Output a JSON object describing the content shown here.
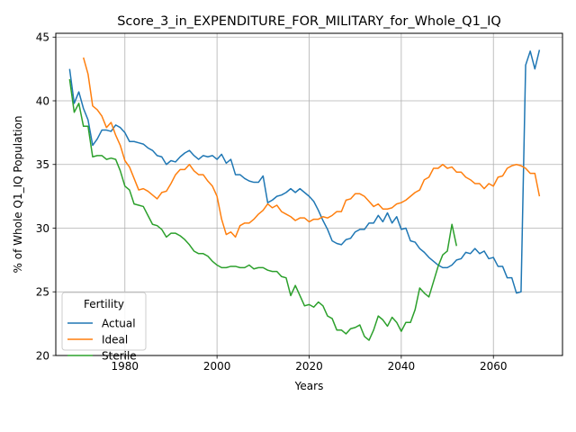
{
  "chart_data": {
    "type": "line",
    "title": "Score_3_in_EXPENDITURE_FOR_MILITARY_for_Whole_Q1_IQ",
    "xlabel": "Years",
    "ylabel": "% of Whole Q1_IQ Population",
    "xlim": [
      1965,
      2075
    ],
    "ylim": [
      20,
      45.3
    ],
    "xticks": [
      1980,
      2000,
      2020,
      2040,
      2060
    ],
    "yticks": [
      20,
      25,
      30,
      35,
      40,
      45
    ],
    "grid": true,
    "legend": {
      "title": "Fertility",
      "placement": "lower-left"
    },
    "series": [
      {
        "name": "Actual",
        "color": "#1f77b4",
        "points": [
          [
            1968,
            42.5
          ],
          [
            1969,
            39.8
          ],
          [
            1970,
            40.7
          ],
          [
            1971,
            39.4
          ],
          [
            1972,
            38.5
          ],
          [
            1973,
            36.5
          ],
          [
            1974,
            37.0
          ],
          [
            1975,
            37.7
          ],
          [
            1976,
            37.7
          ],
          [
            1977,
            37.6
          ],
          [
            1978,
            38.1
          ],
          [
            1979,
            37.9
          ],
          [
            1980,
            37.5
          ],
          [
            1981,
            36.8
          ],
          [
            1982,
            36.8
          ],
          [
            1983,
            36.7
          ],
          [
            1984,
            36.6
          ],
          [
            1985,
            36.3
          ],
          [
            1986,
            36.1
          ],
          [
            1987,
            35.7
          ],
          [
            1988,
            35.6
          ],
          [
            1989,
            35.0
          ],
          [
            1990,
            35.3
          ],
          [
            1991,
            35.2
          ],
          [
            1992,
            35.6
          ],
          [
            1993,
            35.9
          ],
          [
            1994,
            36.1
          ],
          [
            1995,
            35.7
          ],
          [
            1996,
            35.4
          ],
          [
            1997,
            35.7
          ],
          [
            1998,
            35.6
          ],
          [
            1999,
            35.7
          ],
          [
            2000,
            35.4
          ],
          [
            2001,
            35.8
          ],
          [
            2002,
            35.1
          ],
          [
            2003,
            35.4
          ],
          [
            2004,
            34.2
          ],
          [
            2005,
            34.2
          ],
          [
            2006,
            33.9
          ],
          [
            2007,
            33.7
          ],
          [
            2008,
            33.6
          ],
          [
            2009,
            33.6
          ],
          [
            2010,
            34.1
          ],
          [
            2011,
            32.0
          ],
          [
            2012,
            32.2
          ],
          [
            2013,
            32.5
          ],
          [
            2014,
            32.6
          ],
          [
            2015,
            32.8
          ],
          [
            2016,
            33.1
          ],
          [
            2017,
            32.8
          ],
          [
            2018,
            33.1
          ],
          [
            2019,
            32.8
          ],
          [
            2020,
            32.5
          ],
          [
            2021,
            32.1
          ],
          [
            2022,
            31.4
          ],
          [
            2023,
            30.6
          ],
          [
            2024,
            29.9
          ],
          [
            2025,
            29.0
          ],
          [
            2026,
            28.8
          ],
          [
            2027,
            28.7
          ],
          [
            2028,
            29.1
          ],
          [
            2029,
            29.2
          ],
          [
            2030,
            29.7
          ],
          [
            2031,
            29.9
          ],
          [
            2032,
            29.9
          ],
          [
            2033,
            30.4
          ],
          [
            2034,
            30.4
          ],
          [
            2035,
            31.0
          ],
          [
            2036,
            30.5
          ],
          [
            2037,
            31.2
          ],
          [
            2038,
            30.4
          ],
          [
            2039,
            30.9
          ],
          [
            2040,
            29.9
          ],
          [
            2041,
            30.0
          ],
          [
            2042,
            29.0
          ],
          [
            2043,
            28.9
          ],
          [
            2044,
            28.4
          ],
          [
            2045,
            28.1
          ],
          [
            2046,
            27.7
          ],
          [
            2047,
            27.4
          ],
          [
            2048,
            27.1
          ],
          [
            2049,
            26.9
          ],
          [
            2050,
            26.9
          ],
          [
            2051,
            27.1
          ],
          [
            2052,
            27.5
          ],
          [
            2053,
            27.6
          ],
          [
            2054,
            28.1
          ],
          [
            2055,
            28.0
          ],
          [
            2056,
            28.4
          ],
          [
            2057,
            28.0
          ],
          [
            2058,
            28.2
          ],
          [
            2059,
            27.6
          ],
          [
            2060,
            27.7
          ],
          [
            2061,
            27.0
          ],
          [
            2062,
            27.0
          ],
          [
            2063,
            26.1
          ],
          [
            2064,
            26.1
          ],
          [
            2065,
            24.9
          ],
          [
            2066,
            25.0
          ],
          [
            2067,
            42.8
          ],
          [
            2068,
            43.9
          ],
          [
            2069,
            42.5
          ],
          [
            2070,
            44.0
          ]
        ]
      },
      {
        "name": "Ideal",
        "color": "#ff7f0e",
        "points": [
          [
            1971,
            43.4
          ],
          [
            1972,
            42.1
          ],
          [
            1973,
            39.6
          ],
          [
            1974,
            39.3
          ],
          [
            1975,
            38.8
          ],
          [
            1976,
            37.9
          ],
          [
            1977,
            38.3
          ],
          [
            1978,
            37.3
          ],
          [
            1979,
            36.5
          ],
          [
            1980,
            35.3
          ],
          [
            1981,
            34.8
          ],
          [
            1982,
            33.9
          ],
          [
            1983,
            33.0
          ],
          [
            1984,
            33.1
          ],
          [
            1985,
            32.9
          ],
          [
            1986,
            32.6
          ],
          [
            1987,
            32.3
          ],
          [
            1988,
            32.8
          ],
          [
            1989,
            32.9
          ],
          [
            1990,
            33.5
          ],
          [
            1991,
            34.2
          ],
          [
            1992,
            34.6
          ],
          [
            1993,
            34.6
          ],
          [
            1994,
            35.0
          ],
          [
            1995,
            34.5
          ],
          [
            1996,
            34.2
          ],
          [
            1997,
            34.2
          ],
          [
            1998,
            33.7
          ],
          [
            1999,
            33.3
          ],
          [
            2000,
            32.5
          ],
          [
            2001,
            30.7
          ],
          [
            2002,
            29.5
          ],
          [
            2003,
            29.7
          ],
          [
            2004,
            29.3
          ],
          [
            2005,
            30.2
          ],
          [
            2006,
            30.4
          ],
          [
            2007,
            30.4
          ],
          [
            2008,
            30.7
          ],
          [
            2009,
            31.1
          ],
          [
            2010,
            31.4
          ],
          [
            2011,
            31.9
          ],
          [
            2012,
            31.6
          ],
          [
            2013,
            31.8
          ],
          [
            2014,
            31.3
          ],
          [
            2015,
            31.1
          ],
          [
            2016,
            30.9
          ],
          [
            2017,
            30.6
          ],
          [
            2018,
            30.8
          ],
          [
            2019,
            30.8
          ],
          [
            2020,
            30.5
          ],
          [
            2021,
            30.7
          ],
          [
            2022,
            30.7
          ],
          [
            2023,
            30.9
          ],
          [
            2024,
            30.8
          ],
          [
            2025,
            31.0
          ],
          [
            2026,
            31.3
          ],
          [
            2027,
            31.3
          ],
          [
            2028,
            32.2
          ],
          [
            2029,
            32.3
          ],
          [
            2030,
            32.7
          ],
          [
            2031,
            32.7
          ],
          [
            2032,
            32.5
          ],
          [
            2033,
            32.1
          ],
          [
            2034,
            31.7
          ],
          [
            2035,
            31.9
          ],
          [
            2036,
            31.5
          ],
          [
            2037,
            31.5
          ],
          [
            2038,
            31.6
          ],
          [
            2039,
            31.9
          ],
          [
            2040,
            32.0
          ],
          [
            2041,
            32.2
          ],
          [
            2042,
            32.5
          ],
          [
            2043,
            32.8
          ],
          [
            2044,
            33.0
          ],
          [
            2045,
            33.8
          ],
          [
            2046,
            34.0
          ],
          [
            2047,
            34.7
          ],
          [
            2048,
            34.7
          ],
          [
            2049,
            35.0
          ],
          [
            2050,
            34.7
          ],
          [
            2051,
            34.8
          ],
          [
            2052,
            34.4
          ],
          [
            2053,
            34.4
          ],
          [
            2054,
            34.0
          ],
          [
            2055,
            33.8
          ],
          [
            2056,
            33.5
          ],
          [
            2057,
            33.5
          ],
          [
            2058,
            33.1
          ],
          [
            2059,
            33.5
          ],
          [
            2060,
            33.3
          ],
          [
            2061,
            34.0
          ],
          [
            2062,
            34.1
          ],
          [
            2063,
            34.7
          ],
          [
            2064,
            34.9
          ],
          [
            2065,
            35.0
          ],
          [
            2066,
            34.9
          ],
          [
            2067,
            34.7
          ],
          [
            2068,
            34.3
          ],
          [
            2069,
            34.3
          ],
          [
            2070,
            32.5
          ]
        ]
      },
      {
        "name": "Sterile",
        "color": "#2ca02c",
        "points": [
          [
            1968,
            41.7
          ],
          [
            1969,
            39.1
          ],
          [
            1970,
            39.8
          ],
          [
            1971,
            38.0
          ],
          [
            1972,
            38.0
          ],
          [
            1973,
            35.6
          ],
          [
            1974,
            35.7
          ],
          [
            1975,
            35.7
          ],
          [
            1976,
            35.4
          ],
          [
            1977,
            35.5
          ],
          [
            1978,
            35.4
          ],
          [
            1979,
            34.5
          ],
          [
            1980,
            33.3
          ],
          [
            1981,
            33.0
          ],
          [
            1982,
            31.9
          ],
          [
            1983,
            31.8
          ],
          [
            1984,
            31.7
          ],
          [
            1985,
            31.0
          ],
          [
            1986,
            30.3
          ],
          [
            1987,
            30.2
          ],
          [
            1988,
            29.9
          ],
          [
            1989,
            29.3
          ],
          [
            1990,
            29.6
          ],
          [
            1991,
            29.6
          ],
          [
            1992,
            29.4
          ],
          [
            1993,
            29.1
          ],
          [
            1994,
            28.7
          ],
          [
            1995,
            28.2
          ],
          [
            1996,
            28.0
          ],
          [
            1997,
            28.0
          ],
          [
            1998,
            27.8
          ],
          [
            1999,
            27.4
          ],
          [
            2000,
            27.1
          ],
          [
            2001,
            26.9
          ],
          [
            2002,
            26.9
          ],
          [
            2003,
            27.0
          ],
          [
            2004,
            27.0
          ],
          [
            2005,
            26.9
          ],
          [
            2006,
            26.9
          ],
          [
            2007,
            27.1
          ],
          [
            2008,
            26.8
          ],
          [
            2009,
            26.9
          ],
          [
            2010,
            26.9
          ],
          [
            2011,
            26.7
          ],
          [
            2012,
            26.6
          ],
          [
            2013,
            26.6
          ],
          [
            2014,
            26.2
          ],
          [
            2015,
            26.1
          ],
          [
            2016,
            24.7
          ],
          [
            2017,
            25.5
          ],
          [
            2018,
            24.7
          ],
          [
            2019,
            23.9
          ],
          [
            2020,
            24.0
          ],
          [
            2021,
            23.8
          ],
          [
            2022,
            24.2
          ],
          [
            2023,
            23.9
          ],
          [
            2024,
            23.1
          ],
          [
            2025,
            22.9
          ],
          [
            2026,
            22.0
          ],
          [
            2027,
            22.0
          ],
          [
            2028,
            21.7
          ],
          [
            2029,
            22.1
          ],
          [
            2030,
            22.2
          ],
          [
            2031,
            22.4
          ],
          [
            2032,
            21.5
          ],
          [
            2033,
            21.2
          ],
          [
            2034,
            22.0
          ],
          [
            2035,
            23.1
          ],
          [
            2036,
            22.8
          ],
          [
            2037,
            22.3
          ],
          [
            2038,
            23.0
          ],
          [
            2039,
            22.6
          ],
          [
            2040,
            21.9
          ],
          [
            2041,
            22.6
          ],
          [
            2042,
            22.6
          ],
          [
            2043,
            23.6
          ],
          [
            2044,
            25.3
          ],
          [
            2045,
            24.9
          ],
          [
            2046,
            24.6
          ],
          [
            2047,
            25.8
          ],
          [
            2048,
            27.0
          ],
          [
            2049,
            27.9
          ],
          [
            2050,
            28.2
          ],
          [
            2051,
            30.3
          ],
          [
            2052,
            28.6
          ]
        ]
      }
    ]
  }
}
